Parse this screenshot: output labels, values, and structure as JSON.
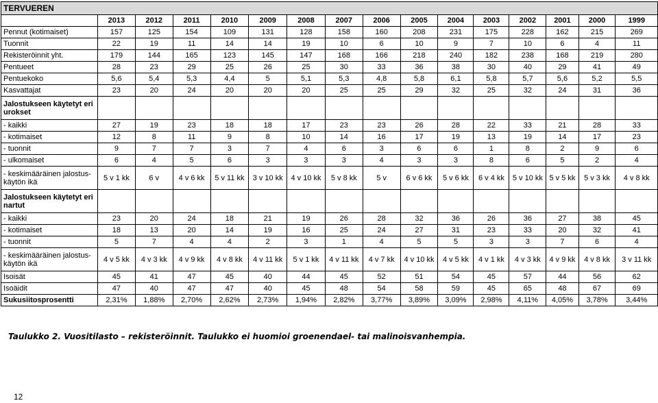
{
  "title": "TERVUEREN",
  "years": [
    "2013",
    "2012",
    "2011",
    "2010",
    "2009",
    "2008",
    "2007",
    "2006",
    "2005",
    "2004",
    "2003",
    "2002",
    "2001",
    "2000",
    "1999"
  ],
  "rows": [
    {
      "label": "Pennut (kotimaiset)",
      "values": [
        "157",
        "125",
        "154",
        "109",
        "131",
        "128",
        "158",
        "160",
        "208",
        "231",
        "175",
        "228",
        "162",
        "215",
        "269"
      ]
    },
    {
      "label": "Tuonnit",
      "values": [
        "22",
        "19",
        "11",
        "14",
        "14",
        "19",
        "10",
        "6",
        "10",
        "9",
        "7",
        "10",
        "6",
        "4",
        "11"
      ]
    },
    {
      "label": "Rekisteröinnit yht.",
      "values": [
        "179",
        "144",
        "165",
        "123",
        "145",
        "147",
        "168",
        "166",
        "218",
        "240",
        "182",
        "238",
        "168",
        "219",
        "280"
      ]
    },
    {
      "label": "Pentueet",
      "values": [
        "28",
        "23",
        "29",
        "25",
        "26",
        "25",
        "30",
        "33",
        "36",
        "38",
        "30",
        "40",
        "29",
        "41",
        "49"
      ]
    },
    {
      "label": "Pentuekoko",
      "values": [
        "5,6",
        "5,4",
        "5,3",
        "4,4",
        "5",
        "5,1",
        "5,3",
        "4,8",
        "5,8",
        "6,1",
        "5,8",
        "5,7",
        "5,6",
        "5,2",
        "5,5"
      ]
    },
    {
      "label": "Kasvattajat",
      "values": [
        "23",
        "20",
        "24",
        "20",
        "20",
        "20",
        "25",
        "25",
        "29",
        "32",
        "25",
        "32",
        "24",
        "31",
        "36"
      ]
    },
    {
      "label": "Jalostukseen käytetyt eri urokset",
      "header": true,
      "values": [
        "",
        "",
        "",
        "",
        "",
        "",
        "",
        "",
        "",
        "",
        "",
        "",
        "",
        "",
        ""
      ]
    },
    {
      "label": "- kaikki",
      "values": [
        "27",
        "19",
        "23",
        "18",
        "18",
        "17",
        "23",
        "23",
        "26",
        "28",
        "22",
        "33",
        "21",
        "28",
        "33"
      ]
    },
    {
      "label": "- kotimaiset",
      "values": [
        "12",
        "8",
        "11",
        "9",
        "8",
        "10",
        "14",
        "16",
        "17",
        "19",
        "13",
        "19",
        "14",
        "17",
        "23"
      ]
    },
    {
      "label": "- tuonnit",
      "values": [
        "9",
        "7",
        "7",
        "3",
        "7",
        "4",
        "6",
        "3",
        "6",
        "6",
        "1",
        "8",
        "2",
        "9",
        "6"
      ]
    },
    {
      "label": "- ulkomaiset",
      "values": [
        "6",
        "4",
        "5",
        "6",
        "3",
        "3",
        "3",
        "4",
        "3",
        "3",
        "8",
        "6",
        "5",
        "2",
        "4"
      ]
    },
    {
      "label": "- keskimääräinen jalostus-käytön ikä",
      "tall": true,
      "values": [
        "5 v 1 kk",
        "6 v",
        "4 v 6 kk",
        "5 v 11 kk",
        "3 v 10 kk",
        "4 v 10 kk",
        "5 v 8 kk",
        "5 v",
        "6 v 6 kk",
        "5 v 6 kk",
        "6 v 4 kk",
        "5 v 10 kk",
        "5 v 5 kk",
        "5 v 3 kk",
        "4 v 8 kk"
      ]
    },
    {
      "label": "Jalostukseen käytetyt eri nartut",
      "header": true,
      "values": [
        "",
        "",
        "",
        "",
        "",
        "",
        "",
        "",
        "",
        "",
        "",
        "",
        "",
        "",
        ""
      ]
    },
    {
      "label": "- kaikki",
      "values": [
        "23",
        "20",
        "24",
        "18",
        "21",
        "19",
        "26",
        "28",
        "32",
        "36",
        "26",
        "36",
        "27",
        "38",
        "45"
      ]
    },
    {
      "label": "- kotimaiset",
      "values": [
        "18",
        "13",
        "20",
        "14",
        "19",
        "16",
        "25",
        "24",
        "27",
        "31",
        "23",
        "33",
        "20",
        "32",
        "41"
      ]
    },
    {
      "label": "- tuonnit",
      "values": [
        "5",
        "7",
        "4",
        "4",
        "2",
        "3",
        "1",
        "4",
        "5",
        "5",
        "3",
        "3",
        "7",
        "6",
        "4"
      ]
    },
    {
      "label": "- keskimääräinen jalostus-käytön ikä",
      "tall": true,
      "values": [
        "4 v 5 kk",
        "4 v 3 kk",
        "4 v 9 kk",
        "4 v 8 kk",
        "4 v 11 kk",
        "5 v 1 kk",
        "4 v 11 kk",
        "4 v 7 kk",
        "4 v 10 kk",
        "4 v 5 kk",
        "4 v 1 kk",
        "4 v 3 kk",
        "4 v 9 kk",
        "4 v 8 kk",
        "3 v 11 kk"
      ]
    },
    {
      "label": "Isoisät",
      "values": [
        "45",
        "41",
        "47",
        "45",
        "40",
        "44",
        "45",
        "52",
        "51",
        "54",
        "45",
        "57",
        "44",
        "56",
        "62"
      ]
    },
    {
      "label": "Isoäidit",
      "values": [
        "47",
        "40",
        "47",
        "47",
        "40",
        "45",
        "48",
        "54",
        "58",
        "59",
        "45",
        "65",
        "48",
        "67",
        "69"
      ]
    },
    {
      "label": "Sukusiitosprosentti",
      "bold": true,
      "values": [
        "2,31%",
        "1,88%",
        "2,70%",
        "2,62%",
        "2,73%",
        "1,94%",
        "2,82%",
        "3,77%",
        "3,89%",
        "3,09%",
        "2,98%",
        "4,11%",
        "4,05%",
        "3,78%",
        "3,44%"
      ]
    }
  ],
  "caption": "Taulukko 2. Vuositilasto – rekisteröinnit. Taulukko ei huomioi groenendael- tai malinoisvanhempia.",
  "page_number": "12"
}
